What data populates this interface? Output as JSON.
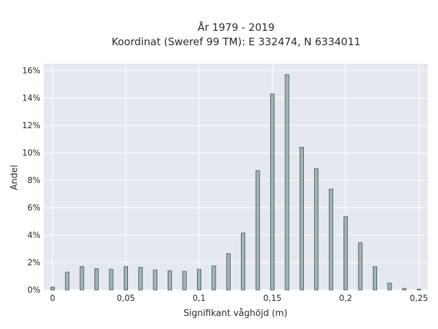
{
  "chart_data": {
    "type": "bar",
    "title_line1": "År 1979 - 2019",
    "title_line2": "Koordinat (Sweref 99 TM): E 332474, N 6334011",
    "xlabel": "Signifikant våghöjd (m)",
    "ylabel": "Andel",
    "xlim": [
      -0.006,
      0.256
    ],
    "ylim": [
      0,
      16.5
    ],
    "x_ticks": [
      {
        "value": 0,
        "label": "0"
      },
      {
        "value": 0.05,
        "label": "0,05"
      },
      {
        "value": 0.1,
        "label": "0,1"
      },
      {
        "value": 0.15,
        "label": "0,15"
      },
      {
        "value": 0.2,
        "label": "0,2"
      },
      {
        "value": 0.25,
        "label": "0,25"
      }
    ],
    "y_ticks": [
      {
        "value": 0,
        "label": "0%"
      },
      {
        "value": 2,
        "label": "2%"
      },
      {
        "value": 4,
        "label": "4%"
      },
      {
        "value": 6,
        "label": "6%"
      },
      {
        "value": 8,
        "label": "8%"
      },
      {
        "value": 10,
        "label": "10%"
      },
      {
        "value": 12,
        "label": "12%"
      },
      {
        "value": 14,
        "label": "14%"
      },
      {
        "value": 16,
        "label": "16%"
      }
    ],
    "bar_width": 0.0025,
    "x": [
      0.0,
      0.01,
      0.02,
      0.03,
      0.04,
      0.05,
      0.06,
      0.07,
      0.08,
      0.09,
      0.1,
      0.11,
      0.12,
      0.13,
      0.14,
      0.15,
      0.16,
      0.17,
      0.18,
      0.19,
      0.2,
      0.21,
      0.22,
      0.23,
      0.24,
      0.25
    ],
    "values": [
      0.2,
      1.3,
      1.7,
      1.55,
      1.5,
      1.7,
      1.65,
      1.45,
      1.4,
      1.35,
      1.5,
      1.75,
      2.65,
      4.15,
      8.7,
      14.3,
      15.7,
      10.4,
      8.85,
      7.35,
      5.35,
      3.45,
      1.7,
      0.5,
      0.1,
      0.05
    ],
    "grid": true,
    "legend": "none",
    "colors": {
      "plot_background": "#e5e8f0",
      "grid": "#ffffff",
      "bar_fill": "#a1b5b5",
      "bar_stroke": "#3a4a48"
    }
  }
}
